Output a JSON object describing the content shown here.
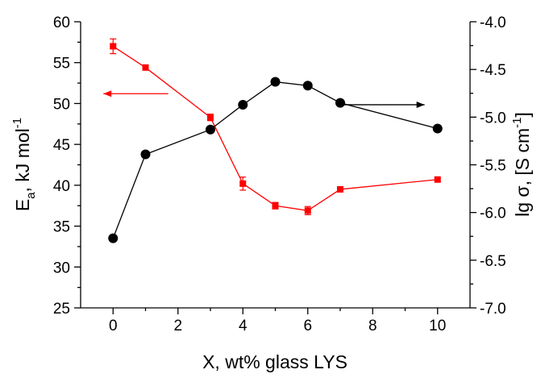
{
  "chart_data": {
    "type": "line",
    "xlabel": "X, wt% glass LYS",
    "ylabel_left": {
      "main": "E",
      "sub": "a",
      "rest": ", kJ mol",
      "sup": "-1"
    },
    "ylabel_right": {
      "main": "lg σ, [S cm",
      "sup": "-1",
      "rest": "]"
    },
    "xlim": [
      -1,
      11
    ],
    "xticks": [
      0,
      2,
      4,
      6,
      8,
      10
    ],
    "xtick_labels": [
      "0",
      "2",
      "4",
      "6",
      "8",
      "10"
    ],
    "ylim_left": [
      25,
      60
    ],
    "yticks_left": [
      25,
      30,
      35,
      40,
      45,
      50,
      55,
      60
    ],
    "ytick_labels_left": [
      "25",
      "30",
      "35",
      "40",
      "45",
      "50",
      "55",
      "60"
    ],
    "ylim_right": [
      -7.0,
      -4.0
    ],
    "yticks_right": [
      -7.0,
      -6.5,
      -6.0,
      -5.5,
      -5.0,
      -4.5,
      -4.0
    ],
    "ytick_labels_right": [
      "-7.0",
      "-6.5",
      "-6.0",
      "-5.5",
      "-5.0",
      "-4.5",
      "-4.0"
    ],
    "grid": false,
    "legend": "none",
    "series": [
      {
        "axis": "left",
        "color": "#ff0000",
        "marker": "square",
        "x": [
          0,
          1,
          3,
          4,
          5,
          6,
          7,
          10
        ],
        "y": [
          57.0,
          54.4,
          48.3,
          40.2,
          37.5,
          36.9,
          39.5,
          40.7
        ],
        "err": [
          0.9,
          0.3,
          0.4,
          0.8,
          0.4,
          0.5,
          0.2,
          0.2
        ],
        "arrow": {
          "direction": "left",
          "x_from": 1.7,
          "x_to": -0.3,
          "y": 51.2
        }
      },
      {
        "axis": "right",
        "color": "#000000",
        "marker": "circle",
        "x": [
          0,
          1,
          3,
          4,
          5,
          6,
          7,
          10
        ],
        "y": [
          -6.27,
          -5.39,
          -5.13,
          -4.87,
          -4.63,
          -4.67,
          -4.85,
          -5.12
        ],
        "arrow": {
          "direction": "right",
          "x_from": 7.0,
          "x_to": 9.6,
          "y": -4.87
        }
      }
    ]
  }
}
